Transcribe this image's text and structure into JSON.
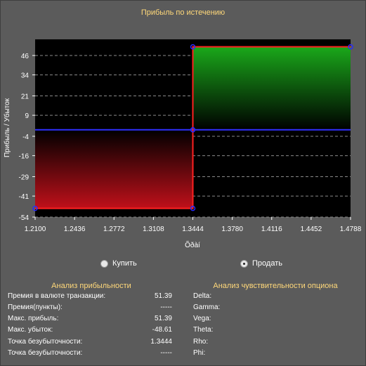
{
  "title": "Прибыль по истечению",
  "chart_data": {
    "type": "area",
    "title": "Прибыль по истечению",
    "ylabel": "Прибыль / Убыток",
    "xlabel": "Õðàí",
    "x_ticks": [
      "1.2100",
      "1.2436",
      "1.2772",
      "1.3108",
      "1.3444",
      "1.3780",
      "1.4116",
      "1.4452",
      "1.4788"
    ],
    "y_ticks": [
      "46",
      "34",
      "21",
      "9",
      "-4",
      "-16",
      "-29",
      "-41",
      "-54"
    ],
    "xlim": [
      1.21,
      1.4788
    ],
    "ylim": [
      -54,
      56
    ],
    "series": [
      {
        "x": [
          1.21,
          1.3444,
          1.3444,
          1.3444,
          1.4788
        ],
        "y": [
          -48.61,
          -48.61,
          0,
          51.39,
          51.39
        ]
      }
    ],
    "colors": {
      "loss": "#c0101a",
      "profit": "#1aa81a",
      "line": "#ff2020",
      "zero": "#3030ff",
      "marker": "#2a2aff"
    }
  },
  "options": [
    {
      "label": "Купить",
      "checked": false
    },
    {
      "label": "Продать",
      "checked": true
    }
  ],
  "profit_analysis": {
    "title": "Анализ прибыльности",
    "rows": [
      {
        "label": "Премия в валюте транзакции:",
        "value": "51.39"
      },
      {
        "label": "Премия(пункты):",
        "value": "-----"
      },
      {
        "label": "Макс. прибыль:",
        "value": "51.39"
      },
      {
        "label": "Макс. убыток:",
        "value": "-48.61"
      },
      {
        "label": "Точка безубыточности:",
        "value": "1.3444"
      },
      {
        "label": "Точка безубыточности:",
        "value": "-----"
      }
    ]
  },
  "sensitivity": {
    "title": "Анализ чувствительности опциона",
    "rows": [
      {
        "label": "Delta:"
      },
      {
        "label": "Gamma:"
      },
      {
        "label": "Vega:"
      },
      {
        "label": "Theta:"
      },
      {
        "label": "Rho:"
      },
      {
        "label": "Phi:"
      }
    ]
  }
}
